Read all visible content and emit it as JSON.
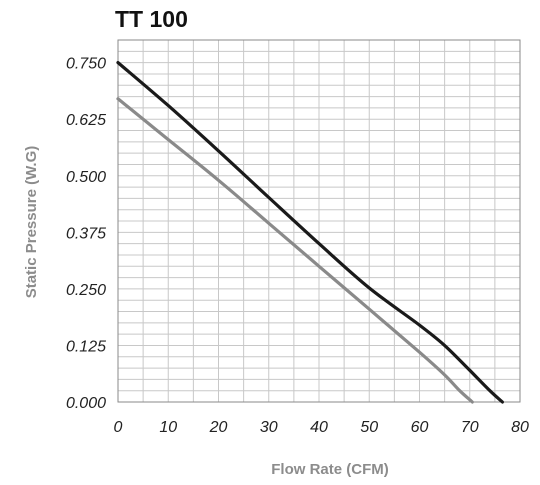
{
  "chart_data": {
    "type": "line",
    "title": "TT 100",
    "xlabel": "Flow Rate (CFM)",
    "ylabel": "Static Pressure (W.G)",
    "xlim": [
      0,
      80
    ],
    "ylim": [
      0,
      0.8
    ],
    "x_ticks": [
      "0",
      "10",
      "20",
      "30",
      "40",
      "50",
      "60",
      "70",
      "80"
    ],
    "y_ticks": [
      "0.000",
      "0.125",
      "0.250",
      "0.375",
      "0.500",
      "0.625",
      "0.750"
    ],
    "grid": true,
    "legend": "none",
    "series": [
      {
        "color": "#1a1a1a",
        "x": [
          0,
          10,
          20,
          30,
          40,
          50,
          60,
          65,
          70,
          74,
          76.5
        ],
        "y": [
          0.75,
          0.655,
          0.555,
          0.452,
          0.35,
          0.252,
          0.17,
          0.125,
          0.07,
          0.025,
          0.0
        ]
      },
      {
        "color": "#8a8a8a",
        "x": [
          0,
          10,
          20,
          30,
          40,
          50,
          60,
          65,
          68,
          70.5
        ],
        "y": [
          0.67,
          0.58,
          0.49,
          0.395,
          0.3,
          0.205,
          0.11,
          0.06,
          0.025,
          0.0
        ]
      }
    ]
  }
}
